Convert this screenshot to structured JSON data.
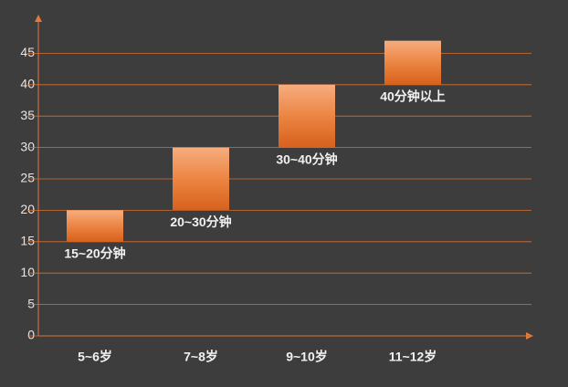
{
  "chart_data": {
    "type": "floating_bar",
    "categories": [
      "5~6岁",
      "7~8岁",
      "9~10岁",
      "11~12岁"
    ],
    "low": [
      15,
      20,
      30,
      40
    ],
    "high": [
      20,
      30,
      40,
      47
    ],
    "labels": [
      "15~20分钟",
      "20~30分钟",
      "30~40分钟",
      "40分钟以上"
    ],
    "ylim": [
      0,
      50
    ],
    "yticks": [
      0,
      5,
      10,
      15,
      20,
      25,
      30,
      35,
      40,
      45
    ],
    "grid": true,
    "color": "#e0732e",
    "grid_color": "#d9702e"
  }
}
